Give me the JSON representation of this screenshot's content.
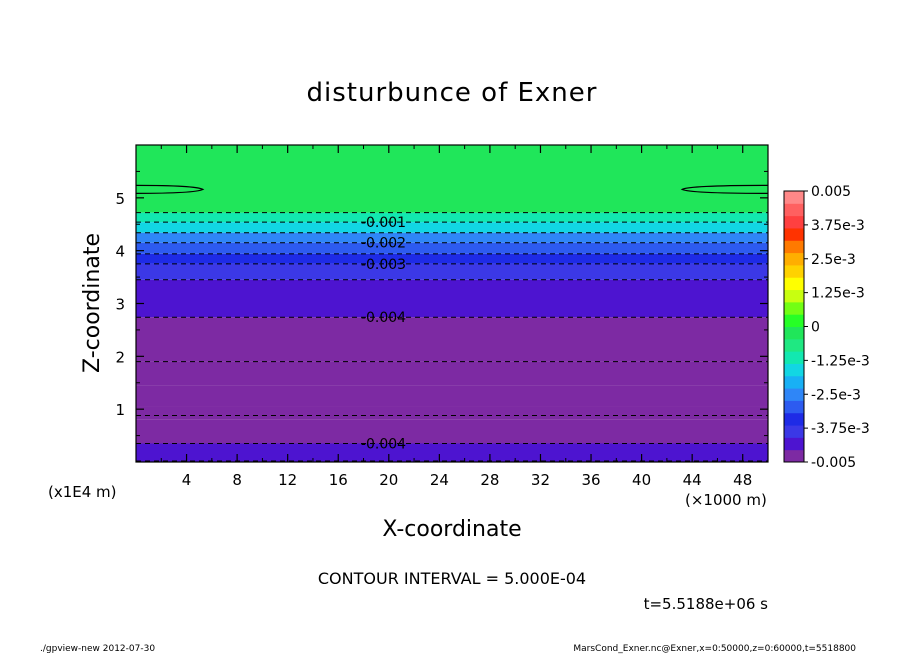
{
  "chart_data": {
    "type": "heatmap",
    "title": "disturbunce of Exner",
    "xlabel": "X-coordinate",
    "ylabel": "Z-coordinate",
    "x_unit_label": "(×1000 m)",
    "y_unit_label": "(x1E4 m)",
    "xlim": [
      0,
      50
    ],
    "ylim": [
      0,
      6
    ],
    "x_ticks": [
      4,
      8,
      12,
      16,
      20,
      24,
      28,
      32,
      36,
      40,
      44,
      48
    ],
    "x_tick_labels": [
      "4",
      "8",
      "12",
      "16",
      "20",
      "24",
      "28",
      "32",
      "36",
      "40",
      "44",
      "48"
    ],
    "y_ticks": [
      1,
      2,
      3,
      4,
      5
    ],
    "y_tick_labels": [
      "1",
      "2",
      "3",
      "4",
      "5"
    ],
    "value_range": [
      -0.005,
      0.005
    ],
    "contour_interval_text": "CONTOUR INTERVAL = 5.000E-04",
    "time_text": "t=5.5188e+06 s",
    "contour_labels": [
      {
        "text": "-0.001",
        "x": 19.5,
        "z": 4.54
      },
      {
        "text": "-0.002",
        "x": 19.5,
        "z": 4.15
      },
      {
        "text": "-0.003",
        "x": 19.5,
        "z": 3.75
      },
      {
        "text": "-0.004",
        "x": 19.5,
        "z": 2.74
      },
      {
        "text": "-0.004",
        "x": 19.5,
        "z": 0.35
      }
    ],
    "dashed_contours_z": [
      4.72,
      4.54,
      4.34,
      4.15,
      3.94,
      3.75,
      3.45,
      2.74,
      1.9,
      0.88,
      0.35,
      0.02
    ],
    "solid_contours": [
      {
        "side": "left",
        "x_end": 5.3,
        "z": 5.16
      },
      {
        "side": "right",
        "x_end": 43.2,
        "z": 5.16
      }
    ],
    "field_bands": [
      {
        "z0": 0.0,
        "z1": 0.35,
        "value": -0.0044
      },
      {
        "z0": 0.35,
        "z1": 0.8,
        "value": -0.0046
      },
      {
        "z0": 0.8,
        "z1": 1.05,
        "value": -0.0048
      },
      {
        "z0": 1.05,
        "z1": 1.45,
        "value": -0.0052
      },
      {
        "z0": 1.45,
        "z1": 1.9,
        "value": -0.0048
      },
      {
        "z0": 1.9,
        "z1": 2.74,
        "value": -0.0046
      },
      {
        "z0": 2.74,
        "z1": 3.45,
        "value": -0.0043
      },
      {
        "z0": 3.45,
        "z1": 3.75,
        "value": -0.0038
      },
      {
        "z0": 3.75,
        "z1": 3.94,
        "value": -0.0033
      },
      {
        "z0": 3.94,
        "z1": 4.15,
        "value": -0.0028
      },
      {
        "z0": 4.15,
        "z1": 4.34,
        "value": -0.0023
      },
      {
        "z0": 4.34,
        "z1": 4.54,
        "value": -0.0018
      },
      {
        "z0": 4.54,
        "z1": 4.72,
        "value": -0.0013
      },
      {
        "z0": 4.72,
        "z1": 6.0,
        "value": -0.0002
      }
    ],
    "colorbar": {
      "colors": [
        "#7d2aa3",
        "#4d14d0",
        "#3b38e6",
        "#1e2be6",
        "#2d5bf0",
        "#2f86f7",
        "#18b0f5",
        "#12d6e3",
        "#12e8b0",
        "#1fe882",
        "#20e65a",
        "#26ff26",
        "#72ff14",
        "#c8ff10",
        "#ffff00",
        "#ffd200",
        "#ffae00",
        "#ff7a00",
        "#ff3300",
        "#ff4040",
        "#ff6060",
        "#ff8888"
      ],
      "tick_labels": [
        "-0.005",
        "-3.75e-3",
        "-2.5e-3",
        "-1.25e-3",
        "0",
        "1.25e-3",
        "2.5e-3",
        "3.75e-3",
        "0.005"
      ]
    }
  },
  "footer": {
    "left": "./gpview-new   2012-07-30",
    "right": "MarsCond_Exner.nc@Exner,x=0:50000,z=0:60000,t=5518800"
  }
}
